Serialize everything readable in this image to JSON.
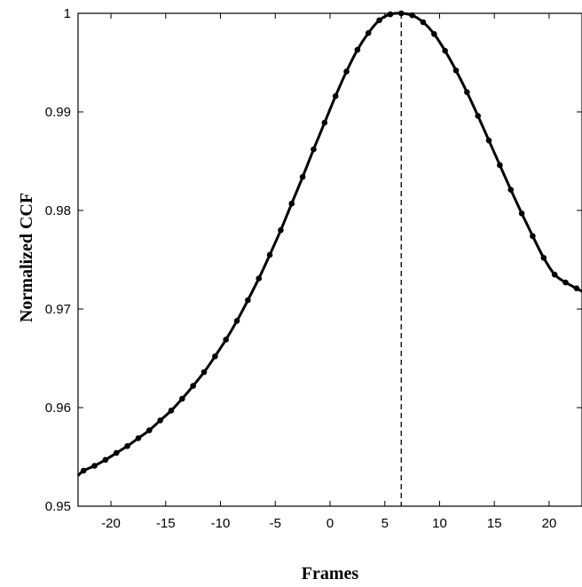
{
  "chart_data": {
    "type": "line",
    "title": "",
    "xlabel": "Frames",
    "ylabel": "Normalized CCF",
    "xlim": [
      -23,
      23
    ],
    "ylim": [
      0.95,
      1.0
    ],
    "x_ticks": [
      -20,
      -15,
      -10,
      -5,
      0,
      5,
      10,
      15,
      20
    ],
    "x_tick_labels": [
      "-20",
      "-15",
      "-10",
      "-5",
      "0",
      "5",
      "10",
      "15",
      "20"
    ],
    "y_ticks": [
      0.95,
      0.96,
      0.97,
      0.98,
      0.99,
      1.0
    ],
    "y_tick_labels": [
      "0.95",
      "0.96",
      "0.97",
      "0.98",
      "0.99",
      "1"
    ],
    "grid": false,
    "legend": "none",
    "peak_x": 6.5,
    "series": [
      {
        "color": "#000000",
        "marker": "dot",
        "x": [
          -23,
          -22.5,
          -21.5,
          -20.5,
          -19.5,
          -18.5,
          -17.5,
          -16.5,
          -15.5,
          -14.5,
          -13.5,
          -12.5,
          -11.5,
          -10.5,
          -9.5,
          -8.5,
          -7.5,
          -6.5,
          -5.5,
          -4.5,
          -3.5,
          -2.5,
          -1.5,
          -0.5,
          0.5,
          1.5,
          2.5,
          3.5,
          4.5,
          5.5,
          6.5,
          7.5,
          8.5,
          9.5,
          10.5,
          11.5,
          12.5,
          13.5,
          14.5,
          15.5,
          16.5,
          17.5,
          18.5,
          19.5,
          20.5,
          21.5,
          22.5,
          23
        ],
        "y": [
          0.9531,
          0.9536,
          0.9541,
          0.9547,
          0.9554,
          0.9561,
          0.9569,
          0.9577,
          0.9587,
          0.9597,
          0.9609,
          0.9622,
          0.9636,
          0.9652,
          0.9669,
          0.9688,
          0.9709,
          0.9731,
          0.9755,
          0.978,
          0.9807,
          0.9834,
          0.9862,
          0.9889,
          0.9916,
          0.9941,
          0.9963,
          0.998,
          0.9993,
          0.9999,
          1.0,
          0.9998,
          0.9991,
          0.9979,
          0.9962,
          0.9942,
          0.992,
          0.9896,
          0.9871,
          0.9846,
          0.9821,
          0.9797,
          0.9774,
          0.9752,
          0.9735,
          0.9727,
          0.9721,
          0.9718
        ]
      }
    ]
  }
}
